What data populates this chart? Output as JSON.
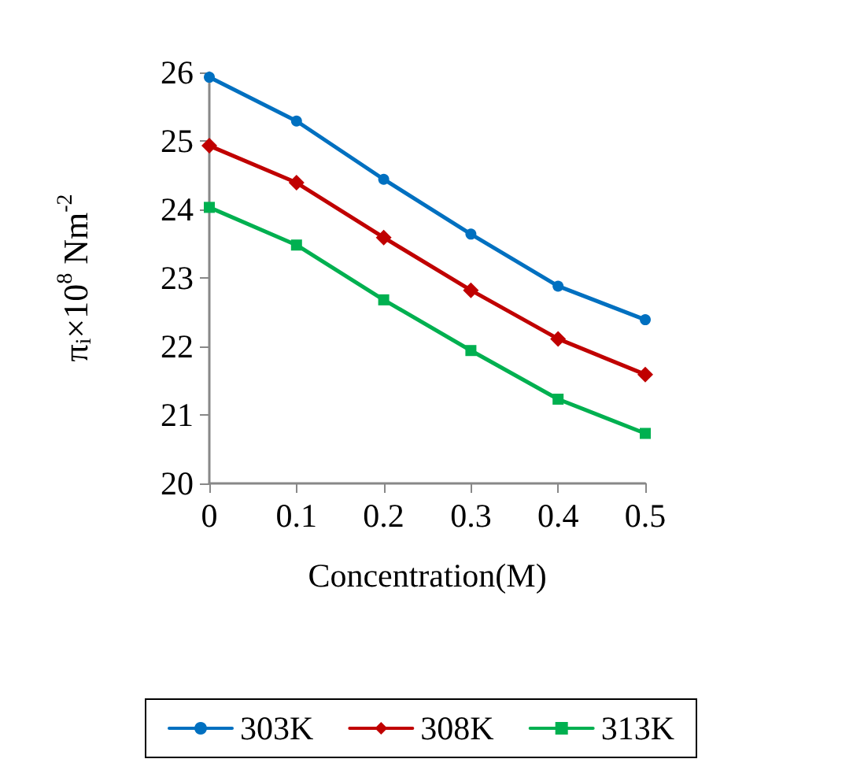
{
  "chart_data": {
    "type": "line",
    "xlabel": "Concentration(M)",
    "ylabel": "π$_{i}$×10$^{8}$ Nm$^{-2}$",
    "x": [
      0,
      0.1,
      0.2,
      0.3,
      0.4,
      0.5
    ],
    "xlim": [
      0,
      0.5
    ],
    "xticks": [
      0,
      0.1,
      0.2,
      0.3,
      0.4,
      0.5
    ],
    "ylim": [
      20,
      26
    ],
    "yticks": [
      20,
      21,
      22,
      23,
      24,
      25,
      26
    ],
    "grid": false,
    "legend": "bottom",
    "line_style": "solid",
    "series": [
      {
        "name": "303K",
        "color": "#0070c0",
        "marker": "circle",
        "values": [
          25.93,
          25.29,
          24.44,
          23.64,
          22.88,
          22.39
        ]
      },
      {
        "name": "308K",
        "color": "#c00000",
        "marker": "diamond",
        "values": [
          24.93,
          24.39,
          23.59,
          22.82,
          22.11,
          21.59
        ]
      },
      {
        "name": "313K",
        "color": "#00b050",
        "marker": "square",
        "values": [
          24.03,
          23.48,
          22.68,
          21.94,
          21.23,
          20.73
        ]
      }
    ]
  }
}
